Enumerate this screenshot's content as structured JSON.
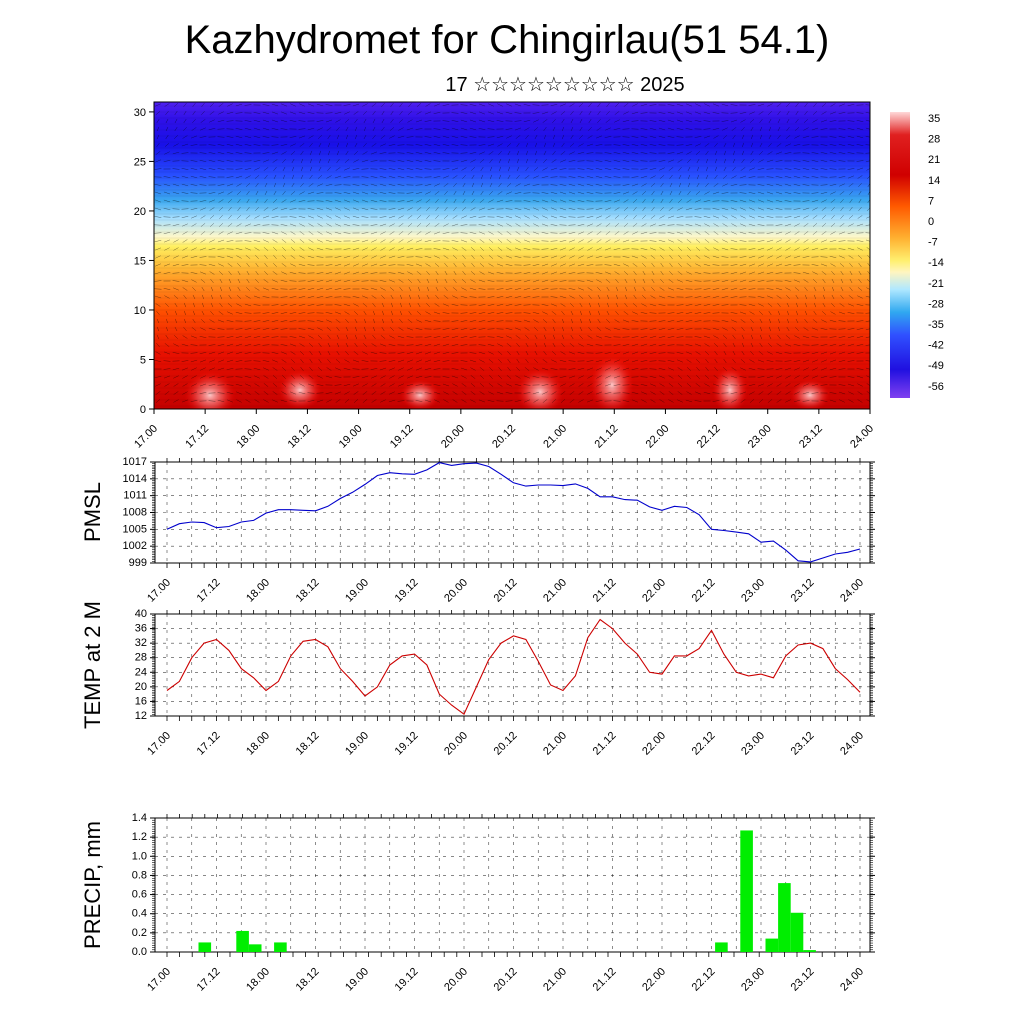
{
  "title": "Kazhydromet for Chingirlau(51 54.1)",
  "subtitle": "17 ☆☆☆☆☆☆☆☆☆ 2025",
  "colorbar_labels": [
    "35",
    "28",
    "21",
    "14",
    "7",
    "0",
    "-7",
    "-14",
    "-21",
    "-28",
    "-35",
    "-42",
    "-49",
    "-56"
  ],
  "chart_data": [
    {
      "type": "heatmap",
      "title": "",
      "xlabel": "",
      "ylabel": "",
      "x_ticks": [
        "17.00",
        "17.12",
        "18.00",
        "18.12",
        "19.00",
        "19.12",
        "20.00",
        "20.12",
        "21.00",
        "21.12",
        "22.00",
        "22.12",
        "23.00",
        "23.12",
        "24.00"
      ],
      "y_ticks": [
        "0",
        "5",
        "10",
        "15",
        "20",
        "25",
        "30"
      ],
      "ylim": [
        0,
        31
      ],
      "colorscale": "temperature, blue-purple (-56) to white-red (35)"
    },
    {
      "type": "line",
      "ylabel": "PMSL",
      "x_ticks": [
        "17.00",
        "17.12",
        "18.00",
        "18.12",
        "19.00",
        "19.12",
        "20.00",
        "20.12",
        "21.00",
        "21.12",
        "22.00",
        "22.12",
        "23.00",
        "23.12",
        "24.00"
      ],
      "y_ticks": [
        "999",
        "1002",
        "1005",
        "1008",
        "1011",
        "1014",
        "1017"
      ],
      "ylim": [
        999,
        1017
      ],
      "color": "#0000cc",
      "values": [
        1005.0,
        1006.0,
        1006.3,
        1006.2,
        1005.3,
        1005.5,
        1006.3,
        1006.6,
        1007.9,
        1008.5,
        1008.5,
        1008.4,
        1008.3,
        1009.1,
        1010.5,
        1011.6,
        1013.0,
        1014.6,
        1015.1,
        1014.9,
        1014.8,
        1015.6,
        1016.9,
        1016.4,
        1016.7,
        1016.8,
        1016.2,
        1014.8,
        1013.3,
        1012.7,
        1012.9,
        1012.9,
        1012.8,
        1013.1,
        1012.3,
        1010.8,
        1010.8,
        1010.3,
        1010.2,
        1009.0,
        1008.4,
        1009.1,
        1008.9,
        1007.6,
        1005.0,
        1004.8,
        1004.5,
        1004.2,
        1002.7,
        1002.9,
        1001.3,
        999.4,
        999.2,
        999.9,
        1000.6,
        1000.9,
        1001.5
      ]
    },
    {
      "type": "line",
      "ylabel": "TEMP at 2 M",
      "x_ticks": [
        "17.00",
        "17.12",
        "18.00",
        "18.12",
        "19.00",
        "19.12",
        "20.00",
        "20.12",
        "21.00",
        "21.12",
        "22.00",
        "22.12",
        "23.00",
        "23.12",
        "24.00"
      ],
      "y_ticks": [
        "12",
        "16",
        "20",
        "24",
        "28",
        "32",
        "36",
        "40"
      ],
      "ylim": [
        12,
        40
      ],
      "color": "#cc0000",
      "values": [
        19,
        21.5,
        28,
        32,
        33,
        30,
        25,
        22.5,
        19,
        21.5,
        28.5,
        32.5,
        33,
        31,
        25,
        21.5,
        17.5,
        20,
        26,
        28.5,
        29,
        26,
        18,
        15,
        12.5,
        20,
        27.5,
        32,
        34,
        33,
        27,
        20.5,
        19,
        23,
        33.5,
        38.5,
        36,
        32,
        29,
        24,
        23.5,
        28.5,
        28.5,
        30.5,
        35.5,
        29,
        24,
        23,
        23.5,
        22.5,
        28.5,
        31.5,
        32,
        30.5,
        25,
        22,
        18.5
      ]
    },
    {
      "type": "bar",
      "ylabel": "PRECIP, mm",
      "x_ticks": [
        "17.00",
        "17.12",
        "18.00",
        "18.12",
        "19.00",
        "19.12",
        "20.00",
        "20.12",
        "21.00",
        "21.12",
        "22.00",
        "22.12",
        "23.00",
        "23.12",
        "24.00"
      ],
      "y_ticks": [
        "0.0",
        "0.2",
        "0.4",
        "0.6",
        "0.8",
        "1.0",
        "1.2",
        "1.4"
      ],
      "ylim": [
        0,
        1.4
      ],
      "color": "#00ee00",
      "values": [
        0,
        0,
        0,
        0.1,
        0,
        0,
        0.22,
        0.08,
        0,
        0.1,
        0,
        0,
        0,
        0,
        0,
        0,
        0,
        0,
        0,
        0,
        0,
        0,
        0,
        0,
        0,
        0,
        0,
        0,
        0,
        0,
        0,
        0,
        0,
        0,
        0,
        0,
        0,
        0,
        0,
        0,
        0,
        0,
        0,
        0,
        0.1,
        0,
        1.27,
        0,
        0.14,
        0.72,
        0.41,
        0.02,
        0,
        0,
        0,
        0
      ]
    }
  ]
}
